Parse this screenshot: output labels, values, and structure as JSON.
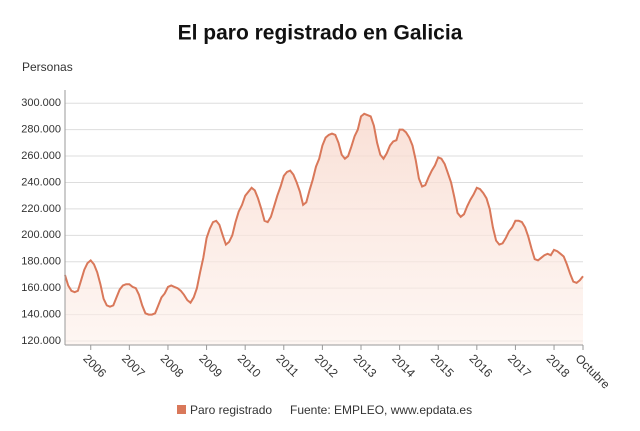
{
  "chart_data": {
    "type": "area",
    "title": "El paro registrado en Galicia",
    "y_label": "Personas",
    "source": "Fuente: EMPLEO, www.epdata.es",
    "categories": [
      null,
      null,
      null,
      null,
      null,
      null,
      null,
      null,
      "2006",
      null,
      null,
      null,
      null,
      null,
      null,
      null,
      null,
      null,
      null,
      null,
      "2007",
      null,
      null,
      null,
      null,
      null,
      null,
      null,
      null,
      null,
      null,
      null,
      "2008",
      null,
      null,
      null,
      null,
      null,
      null,
      null,
      null,
      null,
      null,
      null,
      "2009",
      null,
      null,
      null,
      null,
      null,
      null,
      null,
      null,
      null,
      null,
      null,
      "2010",
      null,
      null,
      null,
      null,
      null,
      null,
      null,
      null,
      null,
      null,
      null,
      "2011",
      null,
      null,
      null,
      null,
      null,
      null,
      null,
      null,
      null,
      null,
      null,
      "2012",
      null,
      null,
      null,
      null,
      null,
      null,
      null,
      null,
      null,
      null,
      null,
      "2013",
      null,
      null,
      null,
      null,
      null,
      null,
      null,
      null,
      null,
      null,
      null,
      "2014",
      null,
      null,
      null,
      null,
      null,
      null,
      null,
      null,
      null,
      null,
      null,
      "2015",
      null,
      null,
      null,
      null,
      null,
      null,
      null,
      null,
      null,
      null,
      null,
      "2016",
      null,
      null,
      null,
      null,
      null,
      null,
      null,
      null,
      null,
      null,
      null,
      "2017",
      null,
      null,
      null,
      null,
      null,
      null,
      null,
      null,
      null,
      null,
      null,
      "2018",
      null,
      null,
      null,
      null,
      null,
      null,
      null,
      null,
      "Octubre"
    ],
    "series": [
      {
        "name": "Paro registrado",
        "color": "#d9785a",
        "values": [
          170000,
          162000,
          158000,
          157000,
          158000,
          166000,
          174000,
          179000,
          181000,
          178000,
          172000,
          163000,
          152000,
          147000,
          146000,
          147000,
          153000,
          159000,
          162000,
          163000,
          163000,
          161000,
          160000,
          155000,
          147000,
          141000,
          140000,
          140000,
          141000,
          147000,
          153000,
          156000,
          161000,
          162000,
          161000,
          160000,
          158000,
          155000,
          151000,
          149000,
          153000,
          160000,
          172000,
          183000,
          198000,
          205000,
          210000,
          211000,
          208000,
          200000,
          193000,
          195000,
          200000,
          210000,
          218000,
          223000,
          230000,
          233000,
          236000,
          234000,
          228000,
          220000,
          211000,
          210000,
          214000,
          222000,
          230000,
          237000,
          245000,
          248000,
          249000,
          246000,
          240000,
          233000,
          223000,
          225000,
          234000,
          242000,
          252000,
          258000,
          268000,
          274000,
          276000,
          277000,
          276000,
          270000,
          261000,
          258000,
          260000,
          267000,
          275000,
          280000,
          290000,
          292000,
          291000,
          290000,
          283000,
          270000,
          261000,
          258000,
          262000,
          268000,
          271000,
          272000,
          280000,
          280000,
          278000,
          274000,
          268000,
          257000,
          243000,
          237000,
          238000,
          244000,
          249000,
          253000,
          259000,
          258000,
          254000,
          247000,
          240000,
          229000,
          217000,
          214000,
          216000,
          222000,
          227000,
          231000,
          236000,
          235000,
          232000,
          228000,
          220000,
          206000,
          196000,
          193000,
          194000,
          198000,
          203000,
          206000,
          211000,
          211000,
          210000,
          206000,
          199000,
          190000,
          182000,
          181000,
          183000,
          185000,
          186000,
          185000,
          189000,
          188000,
          186000,
          184000,
          178000,
          171000,
          165000,
          164000,
          166000,
          169000
        ]
      }
    ],
    "ylim": [
      117000,
      310000
    ],
    "yticks": [
      {
        "value": 120000,
        "label": "120.000"
      },
      {
        "value": 140000,
        "label": "140.000"
      },
      {
        "value": 160000,
        "label": "160.000"
      },
      {
        "value": 180000,
        "label": "180.000"
      },
      {
        "value": 200000,
        "label": "200.000"
      },
      {
        "value": 220000,
        "label": "220.000"
      },
      {
        "value": 240000,
        "label": "240.000"
      },
      {
        "value": 260000,
        "label": "260.000"
      },
      {
        "value": 280000,
        "label": "280.000"
      },
      {
        "value": 300000,
        "label": "300.000"
      }
    ],
    "grid": true
  }
}
